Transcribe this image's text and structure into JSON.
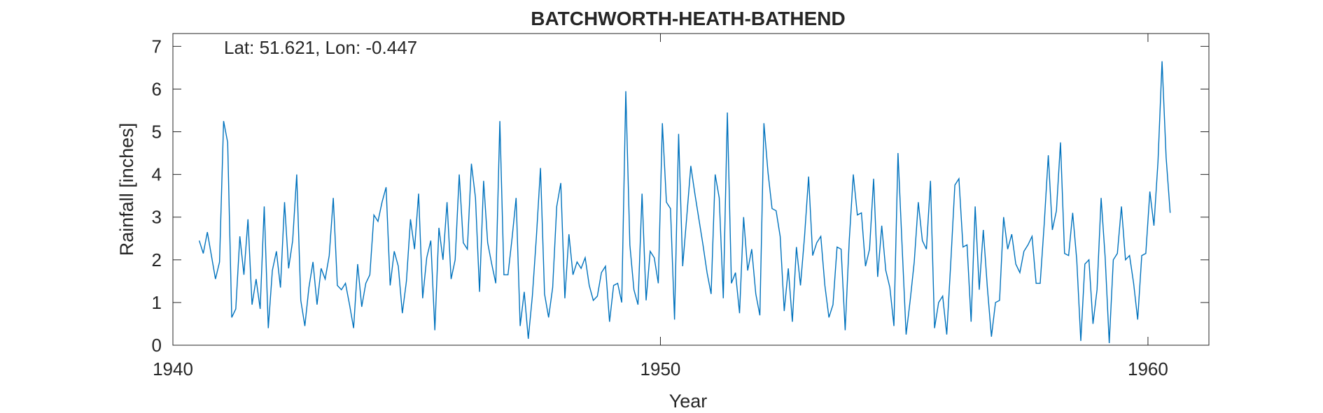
{
  "chart_data": {
    "type": "line",
    "title": "BATCHWORTH-HEATH-BATHEND",
    "xlabel": "Year",
    "ylabel": "Rainfall [inches]",
    "annotation": "Lat: 51.621, Lon: -0.447",
    "xlim": [
      1940,
      1961.25
    ],
    "ylim": [
      0,
      7.3
    ],
    "xticks": [
      1940,
      1950,
      1960
    ],
    "yticks": [
      0,
      1,
      2,
      3,
      4,
      5,
      6,
      7
    ],
    "grid": false,
    "line_color": "#0072BD",
    "series": [
      {
        "x_start": 1940.54,
        "x_step": 0.08333,
        "values": [
          2.45,
          2.15,
          2.65,
          2.1,
          1.55,
          1.95,
          5.25,
          4.75,
          0.65,
          0.85,
          2.55,
          1.65,
          2.95,
          0.95,
          1.55,
          0.85,
          3.25,
          0.4,
          1.75,
          2.2,
          1.35,
          3.35,
          1.8,
          2.45,
          4.0,
          1.05,
          0.45,
          1.35,
          1.95,
          0.95,
          1.8,
          1.55,
          2.1,
          3.45,
          1.4,
          1.3,
          1.45,
          0.95,
          0.4,
          1.9,
          0.9,
          1.45,
          1.65,
          3.05,
          2.9,
          3.35,
          3.7,
          1.4,
          2.2,
          1.85,
          0.75,
          1.5,
          2.95,
          2.25,
          3.55,
          1.1,
          2.05,
          2.45,
          0.35,
          2.75,
          2.0,
          3.35,
          1.55,
          2.0,
          4.0,
          2.4,
          2.25,
          4.25,
          3.45,
          1.25,
          3.85,
          2.4,
          1.9,
          1.45,
          5.25,
          1.65,
          1.65,
          2.5,
          3.45,
          0.45,
          1.25,
          0.15,
          1.15,
          2.55,
          4.15,
          1.2,
          0.65,
          1.35,
          3.25,
          3.8,
          1.1,
          2.6,
          1.65,
          1.95,
          1.8,
          2.05,
          1.4,
          1.05,
          1.15,
          1.7,
          1.85,
          0.55,
          1.4,
          1.45,
          1.0,
          5.95,
          2.35,
          1.3,
          0.95,
          3.55,
          1.05,
          2.2,
          2.05,
          1.45,
          5.2,
          3.35,
          3.2,
          0.6,
          4.95,
          1.85,
          3.0,
          4.2,
          3.55,
          2.95,
          2.35,
          1.7,
          1.2,
          4.0,
          3.45,
          1.1,
          5.45,
          1.45,
          1.7,
          0.75,
          3.0,
          1.75,
          2.25,
          1.2,
          0.7,
          5.2,
          4.05,
          3.2,
          3.15,
          2.55,
          0.8,
          1.8,
          0.55,
          2.3,
          1.4,
          2.55,
          3.95,
          2.1,
          2.4,
          2.55,
          1.4,
          0.65,
          0.95,
          2.3,
          2.25,
          0.35,
          2.45,
          4.0,
          3.05,
          3.1,
          1.85,
          2.25,
          3.9,
          1.6,
          2.8,
          1.75,
          1.35,
          0.45,
          4.5,
          2.35,
          0.25,
          1.05,
          1.95,
          3.35,
          2.45,
          2.25,
          3.85,
          0.4,
          1.0,
          1.15,
          0.25,
          1.95,
          3.75,
          3.9,
          2.3,
          2.35,
          0.55,
          3.25,
          1.3,
          2.7,
          1.35,
          0.2,
          1.0,
          1.05,
          3.0,
          2.25,
          2.6,
          1.9,
          1.7,
          2.2,
          2.35,
          2.55,
          1.45,
          1.45,
          2.85,
          4.45,
          2.7,
          3.15,
          4.75,
          2.15,
          2.1,
          3.1,
          2.0,
          0.1,
          1.9,
          2.0,
          0.5,
          1.3,
          3.45,
          2.05,
          0.05,
          2.0,
          2.15,
          3.25,
          2.0,
          2.1,
          1.45,
          0.6,
          2.1,
          2.15,
          3.6,
          2.8,
          4.3,
          6.65,
          4.4,
          3.1
        ]
      }
    ]
  }
}
